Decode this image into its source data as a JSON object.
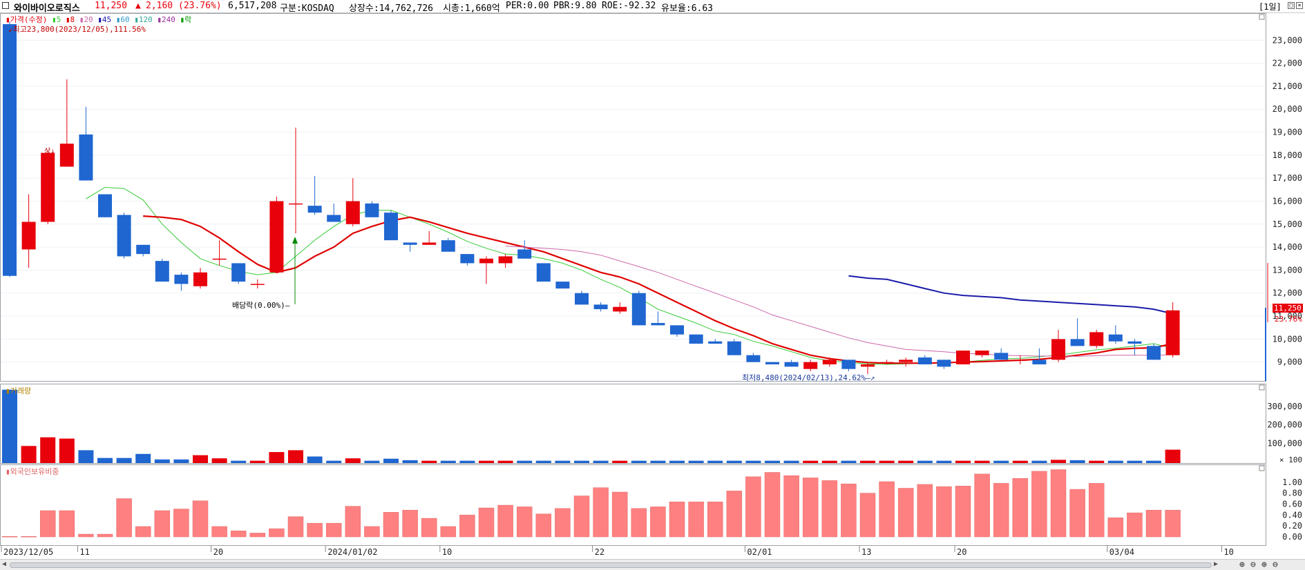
{
  "header": {
    "name": "와이바이오로직스",
    "price": "11,250",
    "change_arrow": "▲",
    "change": "2,160",
    "change_pct": "(23.76%)",
    "volume": "6,517,208",
    "market": "구분:KOSDAQ",
    "listed": "상장수:14,762,726",
    "mcap": "시총:1,660억",
    "per": "PER:0.00",
    "pbr": "PBR:9.80",
    "roe": "ROE:-92.32",
    "float": "유보율:6.63",
    "period": "[1일]"
  },
  "colors": {
    "up": "#e8000b",
    "down": "#1f66d1",
    "ma5": "#33cc33",
    "ma8": "#e00000",
    "ma20": "#cc66aa",
    "ma45": "#1a1aaa",
    "foreign": "#ff8080"
  },
  "price_panel": {
    "legend": [
      "가격(수정)",
      "5",
      "8",
      "20",
      "45",
      "60",
      "120",
      "240",
      "락"
    ],
    "high_note": "최고23,800(2023/12/05),111.56%",
    "low_note": "최저8,480(2024/02/13),24.62%",
    "dividend_note": "배당락(0.00%)",
    "limit_up_note": "상",
    "last_price_label": "11,250",
    "last_pct_label": "23.76%"
  },
  "volume_panel": {
    "title": "거래량"
  },
  "foreign_panel": {
    "title": "외국인보유비중"
  },
  "chart_data": [
    {
      "type": "candlestick",
      "title": "가격(수정)",
      "ylim": [
        8300,
        24000
      ],
      "y_ticks": [
        9000,
        10000,
        11000,
        12000,
        13000,
        14000,
        15000,
        16000,
        17000,
        18000,
        19000,
        20000,
        21000,
        22000,
        23000
      ],
      "y_tick_labels": [
        "9,000",
        "10,000",
        "11,000",
        "12,000",
        "13,000",
        "14,000",
        "15,000",
        "16,000",
        "17,000",
        "18,000",
        "19,000",
        "20,000",
        "21,000",
        "22,000",
        "23,000"
      ],
      "x_labels": [
        {
          "i": 0,
          "label": "2023/12/05"
        },
        {
          "i": 4,
          "label": "11"
        },
        {
          "i": 11,
          "label": "20"
        },
        {
          "i": 17,
          "label": "2024/01/02"
        },
        {
          "i": 23,
          "label": "10"
        },
        {
          "i": 31,
          "label": "22"
        },
        {
          "i": 39,
          "label": "02/01"
        },
        {
          "i": 45,
          "label": "13"
        },
        {
          "i": 50,
          "label": "20"
        },
        {
          "i": 58,
          "label": "03/04"
        },
        {
          "i": 64,
          "label": "10"
        }
      ],
      "candles": [
        [
          23700,
          23800,
          12700,
          12750
        ],
        [
          13900,
          16300,
          13100,
          15100
        ],
        [
          15100,
          18200,
          15000,
          18100
        ],
        [
          17500,
          21300,
          17500,
          18500
        ],
        [
          18900,
          20100,
          16900,
          16900
        ],
        [
          16300,
          16300,
          15300,
          15300
        ],
        [
          15400,
          15500,
          13500,
          13600
        ],
        [
          14100,
          14100,
          13600,
          13700
        ],
        [
          13400,
          13500,
          12500,
          12500
        ],
        [
          12800,
          12900,
          12100,
          12400
        ],
        [
          12300,
          13100,
          12200,
          12900
        ],
        [
          13500,
          14300,
          13200,
          13500
        ],
        [
          13300,
          13300,
          12400,
          12500
        ],
        [
          12400,
          12600,
          12200,
          12400
        ],
        [
          12900,
          16200,
          12900,
          16000
        ],
        [
          15900,
          19200,
          14600,
          15900
        ],
        [
          15800,
          17100,
          15400,
          15500
        ],
        [
          15400,
          15900,
          15100,
          15100
        ],
        [
          15000,
          17000,
          14900,
          16000
        ],
        [
          15900,
          16000,
          15300,
          15300
        ],
        [
          15500,
          15600,
          14300,
          14300
        ],
        [
          14200,
          14200,
          13800,
          14100
        ],
        [
          14100,
          14700,
          14100,
          14200
        ],
        [
          14300,
          14400,
          13800,
          13800
        ],
        [
          13700,
          13700,
          13200,
          13300
        ],
        [
          13300,
          13600,
          12400,
          13500
        ],
        [
          13300,
          13700,
          13100,
          13600
        ],
        [
          13900,
          14300,
          13500,
          13500
        ],
        [
          13300,
          13300,
          12500,
          12500
        ],
        [
          12500,
          12500,
          12200,
          12200
        ],
        [
          12000,
          12100,
          11500,
          11500
        ],
        [
          11500,
          11600,
          11200,
          11300
        ],
        [
          11200,
          11600,
          11100,
          11400
        ],
        [
          12000,
          12100,
          10600,
          10600
        ],
        [
          10700,
          11200,
          10600,
          10600
        ],
        [
          10600,
          10600,
          10100,
          10200
        ],
        [
          10200,
          10200,
          9800,
          9800
        ],
        [
          9900,
          10000,
          9800,
          9800
        ],
        [
          9900,
          10000,
          9300,
          9300
        ],
        [
          9300,
          9400,
          9000,
          9000
        ],
        [
          9000,
          9000,
          8900,
          8900
        ],
        [
          9000,
          9100,
          8800,
          8800
        ],
        [
          8700,
          9100,
          8600,
          9000
        ],
        [
          8900,
          9200,
          8800,
          9100
        ],
        [
          9100,
          9100,
          8600,
          8700
        ],
        [
          8800,
          9000,
          8480,
          8900
        ],
        [
          9000,
          9100,
          8900,
          9000
        ],
        [
          9000,
          9200,
          8800,
          9100
        ],
        [
          9200,
          9300,
          8900,
          8900
        ],
        [
          9100,
          9100,
          8700,
          8800
        ],
        [
          8900,
          9500,
          8900,
          9500
        ],
        [
          9300,
          9500,
          9200,
          9500
        ],
        [
          9400,
          9600,
          9100,
          9100
        ],
        [
          9100,
          9300,
          8900,
          9100
        ],
        [
          9100,
          9600,
          8900,
          8900
        ],
        [
          9100,
          10400,
          9000,
          10000
        ],
        [
          10000,
          10900,
          9700,
          9700
        ],
        [
          9700,
          10400,
          9600,
          10300
        ],
        [
          10200,
          10600,
          9800,
          9900
        ],
        [
          9900,
          10000,
          9300,
          9800
        ],
        [
          9700,
          9800,
          9100,
          9100
        ],
        [
          9300,
          11600,
          9200,
          11250
        ]
      ],
      "series": [
        {
          "name": "5",
          "values": [
            null,
            null,
            null,
            null,
            16100,
            16600,
            16550,
            16050,
            15000,
            14200,
            13500,
            13200,
            12950,
            12800,
            12900,
            13600,
            14300,
            14900,
            15400,
            15600,
            15600,
            15300,
            15000,
            14650,
            14250,
            13950,
            13700,
            13650,
            13500,
            13300,
            13000,
            12600,
            12250,
            11800,
            11300,
            11000,
            10700,
            10350,
            10200,
            9900,
            9700,
            9450,
            9200,
            9050,
            8980,
            8920,
            8900,
            8920,
            8950,
            8960,
            9000,
            9070,
            9140,
            9160,
            9230,
            9300,
            9420,
            9530,
            9600,
            9700,
            9800,
            9600
          ]
        },
        {
          "name": "8",
          "values": [
            null,
            null,
            null,
            null,
            null,
            null,
            null,
            15350,
            15300,
            15200,
            14900,
            14400,
            13800,
            13250,
            12900,
            13100,
            13600,
            14000,
            14600,
            14900,
            15150,
            15300,
            15100,
            14850,
            14600,
            14400,
            14200,
            14000,
            13800,
            13500,
            13200,
            12900,
            12700,
            12400,
            12000,
            11600,
            11200,
            10800,
            10450,
            10150,
            9800,
            9550,
            9300,
            9150,
            9050,
            8980,
            8950,
            8950,
            8950,
            8970,
            9000,
            9020,
            9050,
            9080,
            9120,
            9200,
            9300,
            9400,
            9550,
            9600,
            9620,
            9800
          ]
        },
        {
          "name": "20",
          "values": [
            null,
            null,
            null,
            null,
            null,
            null,
            null,
            null,
            null,
            null,
            null,
            null,
            null,
            null,
            null,
            null,
            null,
            null,
            null,
            null,
            null,
            null,
            null,
            null,
            null,
            null,
            14050,
            14000,
            13950,
            13900,
            13800,
            13650,
            13400,
            13150,
            12900,
            12600,
            12300,
            12000,
            11700,
            11400,
            11050,
            10800,
            10550,
            10300,
            10050,
            9850,
            9700,
            9550,
            9500,
            9450,
            9380,
            9350,
            9300,
            9280,
            9260,
            9260,
            9250,
            9280,
            9300,
            9300,
            9300,
            9320
          ]
        },
        {
          "name": "45",
          "values": [
            null,
            null,
            null,
            null,
            null,
            null,
            null,
            null,
            null,
            null,
            null,
            null,
            null,
            null,
            null,
            null,
            null,
            null,
            null,
            null,
            null,
            null,
            null,
            null,
            null,
            null,
            null,
            null,
            null,
            null,
            null,
            null,
            null,
            null,
            null,
            null,
            null,
            null,
            null,
            null,
            null,
            null,
            null,
            null,
            12750,
            12650,
            12600,
            12400,
            12200,
            12000,
            11900,
            11850,
            11800,
            11700,
            11650,
            11600,
            11550,
            11500,
            11450,
            11400,
            11300,
            11100
          ]
        }
      ]
    },
    {
      "type": "bar",
      "title": "거래량",
      "ylim": [
        0,
        400000
      ],
      "y_ticks": [
        100000,
        200000,
        300000
      ],
      "y_tick_labels": [
        "100,000",
        "200,000",
        "300,000"
      ],
      "y_unit": "× 100",
      "values": [
        390000,
        85000,
        132000,
        125000,
        62000,
        20000,
        20000,
        42000,
        12000,
        12000,
        35000,
        18000,
        5000,
        5000,
        52000,
        62000,
        28000,
        5000,
        18000,
        5000,
        16000,
        8000,
        5000,
        5000,
        5000,
        5000,
        5000,
        5000,
        5000,
        5000,
        5000,
        5000,
        5000,
        5000,
        5000,
        5000,
        5000,
        5000,
        5000,
        5000,
        5000,
        5000,
        5000,
        5000,
        5000,
        5000,
        5000,
        5000,
        5000,
        5000,
        5000,
        5000,
        5000,
        5000,
        5000,
        10000,
        8000,
        5000,
        5000,
        5000,
        5000,
        65000
      ]
    },
    {
      "type": "bar",
      "title": "외국인보유비중",
      "ylim": [
        0,
        1.3
      ],
      "y_ticks": [
        0,
        0.2,
        0.4,
        0.6,
        0.8,
        1.0
      ],
      "y_tick_labels": [
        "0.00",
        "0.20",
        "0.40",
        "0.60",
        "0.80",
        "1.00"
      ],
      "values": [
        0.01,
        0.01,
        0.48,
        0.48,
        0.05,
        0.05,
        0.7,
        0.19,
        0.48,
        0.51,
        0.66,
        0.19,
        0.11,
        0.07,
        0.15,
        0.37,
        0.25,
        0.25,
        0.56,
        0.19,
        0.45,
        0.49,
        0.34,
        0.19,
        0.4,
        0.53,
        0.58,
        0.55,
        0.42,
        0.52,
        0.75,
        0.9,
        0.82,
        0.52,
        0.55,
        0.64,
        0.64,
        0.64,
        0.84,
        1.1,
        1.18,
        1.12,
        1.08,
        1.03,
        0.97,
        0.8,
        1.01,
        0.89,
        0.96,
        0.92,
        0.93,
        1.15,
        0.98,
        1.07,
        1.2,
        1.23,
        0.87,
        0.98,
        0.35,
        0.44,
        0.49,
        0.49
      ]
    }
  ]
}
